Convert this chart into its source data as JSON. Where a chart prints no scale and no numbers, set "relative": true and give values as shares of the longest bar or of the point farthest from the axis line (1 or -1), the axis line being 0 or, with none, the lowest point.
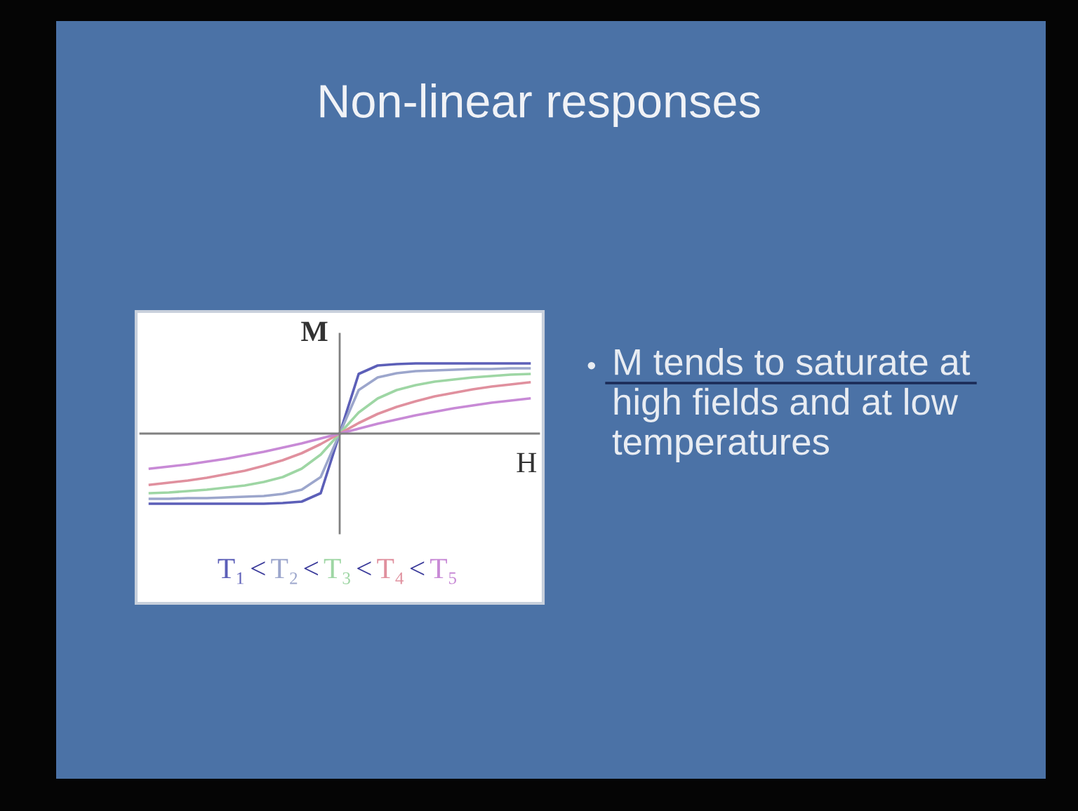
{
  "chart_data": {
    "type": "line",
    "title": "Non-linear responses",
    "xlabel": "H",
    "ylabel": "M",
    "relative": true,
    "grid": false,
    "legend": "bottom",
    "marker": "none",
    "line_style": "solid",
    "categories": [
      null,
      null,
      null,
      null,
      null,
      null,
      null,
      null,
      null,
      null,
      null,
      null,
      null,
      null,
      null,
      null,
      null,
      null,
      null,
      null,
      null
    ],
    "series": [
      {
        "name": "T₁",
        "color": "#5c5fb8",
        "values": [
          -1.0,
          -1.0,
          -1.0,
          -1.0,
          -1.0,
          -1.0,
          -1.0,
          -0.99,
          -0.97,
          -0.85,
          0,
          0.85,
          0.97,
          0.99,
          1.0,
          1.0,
          1.0,
          1.0,
          1.0,
          1.0,
          1.0
        ]
      },
      {
        "name": "T₂",
        "color": "#9ca6cc",
        "values": [
          -0.93,
          -0.93,
          -0.92,
          -0.92,
          -0.91,
          -0.9,
          -0.89,
          -0.86,
          -0.8,
          -0.62,
          0,
          0.62,
          0.8,
          0.86,
          0.89,
          0.9,
          0.91,
          0.92,
          0.92,
          0.93,
          0.93
        ]
      },
      {
        "name": "T₃",
        "color": "#9ed6a4",
        "values": [
          -0.85,
          -0.84,
          -0.82,
          -0.8,
          -0.77,
          -0.74,
          -0.69,
          -0.62,
          -0.5,
          -0.3,
          0,
          0.3,
          0.5,
          0.62,
          0.69,
          0.74,
          0.77,
          0.8,
          0.82,
          0.84,
          0.85
        ]
      },
      {
        "name": "T₄",
        "color": "#e0909e",
        "values": [
          -0.73,
          -0.7,
          -0.67,
          -0.63,
          -0.58,
          -0.53,
          -0.46,
          -0.38,
          -0.28,
          -0.15,
          0,
          0.15,
          0.28,
          0.38,
          0.46,
          0.53,
          0.58,
          0.63,
          0.67,
          0.7,
          0.73
        ]
      },
      {
        "name": "T₅",
        "color": "#c88ad6",
        "values": [
          -0.5,
          -0.47,
          -0.44,
          -0.4,
          -0.36,
          -0.31,
          -0.26,
          -0.2,
          -0.14,
          -0.07,
          0,
          0.07,
          0.14,
          0.2,
          0.26,
          0.31,
          0.36,
          0.4,
          0.44,
          0.47,
          0.5
        ]
      }
    ],
    "annotations": [
      "M tends to saturate at high fields and at low temperatures",
      "•",
      "<",
      "<",
      "<",
      "<"
    ]
  }
}
